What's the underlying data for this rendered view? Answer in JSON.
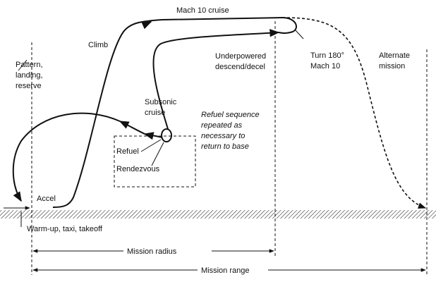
{
  "labels": {
    "mach_cruise": "Mach 10 cruise",
    "climb": "Climb",
    "pattern": [
      "Pattern,",
      "landing,",
      "reserve"
    ],
    "underpowered": [
      "Underpowered",
      "descend/decel"
    ],
    "turn": [
      "Turn 180°",
      "Mach 10"
    ],
    "alternate": [
      "Alternate",
      "mission"
    ],
    "subsonic": [
      "Subsonic",
      "cruise"
    ],
    "refuel_sequence": [
      "Refuel sequence",
      "repeated as",
      "necessary to",
      "return to base"
    ],
    "refuel": "Refuel",
    "rendezvous": "Rendezvous",
    "accel": "Accel",
    "warmup": "Warm-up, taxi, takeoff",
    "mission_radius": "Mission radius",
    "mission_range": "Mission range"
  }
}
